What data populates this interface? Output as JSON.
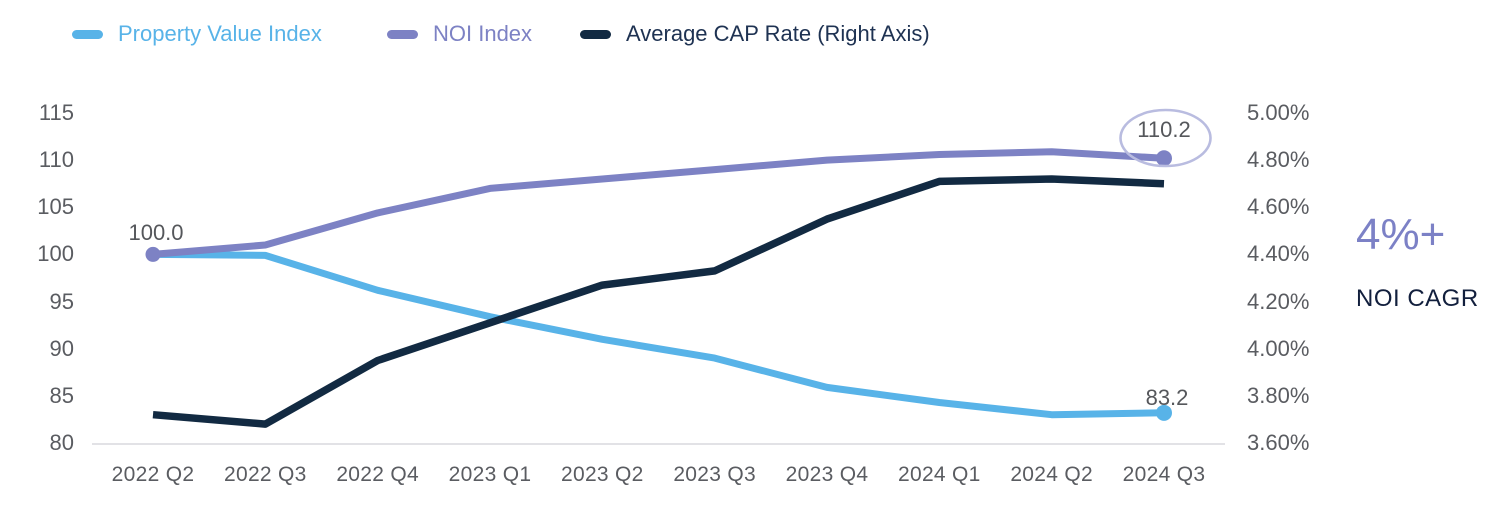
{
  "legend": [
    {
      "label": "Property Value Index",
      "color": "#58B3E8"
    },
    {
      "label": "NOI Index",
      "color": "#7D82C4"
    },
    {
      "label": "Average CAP Rate (Right Axis)",
      "color": "#122A42",
      "label_color": "#1E3252"
    }
  ],
  "annotations": {
    "noi_start_label": "100.0",
    "noi_end_label": "110.2",
    "pvi_end_label": "83.2"
  },
  "callout": {
    "value": "4%+",
    "caption": "NOI CAGR"
  },
  "chart_data": {
    "type": "line",
    "categories": [
      "2022 Q2",
      "2022 Q3",
      "2022 Q4",
      "2023 Q1",
      "2023 Q2",
      "2023 Q3",
      "2023 Q4",
      "2024 Q1",
      "2024 Q2",
      "2024 Q3"
    ],
    "series": [
      {
        "name": "Property Value Index",
        "axis": "left",
        "color": "#58B3E8",
        "values": [
          100.0,
          99.9,
          96.2,
          93.4,
          91.0,
          89.0,
          85.9,
          84.3,
          83.0,
          83.2
        ],
        "marker_start": false,
        "marker_end": true
      },
      {
        "name": "NOI Index",
        "axis": "left",
        "color": "#7D82C4",
        "values": [
          100.0,
          101.0,
          104.4,
          107.0,
          108.0,
          109.0,
          110.0,
          110.6,
          110.9,
          110.2
        ],
        "marker_start": true,
        "marker_end": true
      },
      {
        "name": "Average CAP Rate (Right Axis)",
        "axis": "right",
        "color": "#122A42",
        "values": [
          3.72,
          3.68,
          3.95,
          4.11,
          4.27,
          4.33,
          4.55,
          4.71,
          4.72,
          4.7
        ],
        "marker_start": false,
        "marker_end": false
      }
    ],
    "left_axis": {
      "min": 80,
      "max": 115,
      "ticks": [
        "115",
        "110",
        "105",
        "100",
        "95",
        "90",
        "85",
        "80"
      ]
    },
    "right_axis": {
      "min": 3.6,
      "max": 5.0,
      "ticks": [
        "5.00%",
        "4.80%",
        "4.60%",
        "4.40%",
        "4.20%",
        "4.00%",
        "3.80%",
        "3.60%"
      ]
    },
    "grid": "baseline-only",
    "legend_position": "top-left",
    "highlight": {
      "type": "ellipse",
      "around": "noi_end_label",
      "stroke": "#B9BCE0"
    },
    "baseline_color": "#D9D9DE"
  }
}
